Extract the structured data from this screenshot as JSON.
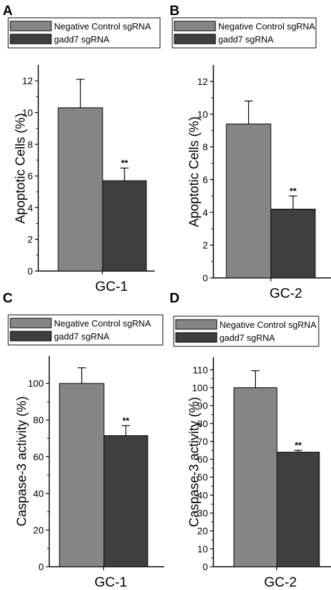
{
  "figure": {
    "legend_entries": [
      "Negative Control sgRNA",
      "gadd7 sgRNA"
    ],
    "colors": {
      "control": "#858585",
      "gadd7": "#3f3f3f",
      "axis": "#000000"
    }
  },
  "chart_data": [
    {
      "panel": "A",
      "type": "bar",
      "categories": [
        "GC-1"
      ],
      "series": [
        {
          "name": "Negative Control sgRNA",
          "values": [
            10.3
          ],
          "error": [
            1.8
          ]
        },
        {
          "name": "gadd7 sgRNA",
          "values": [
            5.7
          ],
          "error": [
            0.8
          ],
          "annotation": "**"
        }
      ],
      "ylabel": "Apoptotic Cells (%)",
      "ylim": [
        0,
        13
      ],
      "yticks": [
        0,
        2,
        4,
        6,
        8,
        10,
        12
      ],
      "legend": "top"
    },
    {
      "panel": "B",
      "type": "bar",
      "categories": [
        "GC-2"
      ],
      "series": [
        {
          "name": "Negative Control sgRNA",
          "values": [
            9.4
          ],
          "error": [
            1.4
          ]
        },
        {
          "name": "gadd7 sgRNA",
          "values": [
            4.2
          ],
          "error": [
            0.8
          ],
          "annotation": "**"
        }
      ],
      "ylabel": "Apoptotic Cells (%)",
      "ylim": [
        0,
        13
      ],
      "yticks": [
        0,
        2,
        4,
        6,
        8,
        10,
        12
      ],
      "legend": "top"
    },
    {
      "panel": "C",
      "type": "bar",
      "categories": [
        "GC-1"
      ],
      "series": [
        {
          "name": "Negative Control sgRNA",
          "values": [
            100
          ],
          "error": [
            8.5
          ]
        },
        {
          "name": "gadd7 sgRNA",
          "values": [
            71.5
          ],
          "error": [
            5.5
          ],
          "annotation": "**"
        }
      ],
      "ylabel": "Caspase-3 activity (%)",
      "ylim": [
        0,
        115
      ],
      "yticks": [
        0,
        20,
        40,
        60,
        80,
        100
      ],
      "legend": "top"
    },
    {
      "panel": "D",
      "type": "bar",
      "categories": [
        "GC-2"
      ],
      "series": [
        {
          "name": "Negative Control sgRNA",
          "values": [
            100
          ],
          "error": [
            9.5
          ]
        },
        {
          "name": "gadd7 sgRNA",
          "values": [
            64
          ],
          "error": [
            1.0
          ],
          "annotation": "**"
        }
      ],
      "ylabel": "Caspase-3 activity (%)",
      "ylim": [
        0,
        117
      ],
      "yticks": [
        0,
        10,
        20,
        30,
        40,
        50,
        60,
        70,
        80,
        90,
        100,
        110
      ],
      "legend": "top"
    }
  ]
}
